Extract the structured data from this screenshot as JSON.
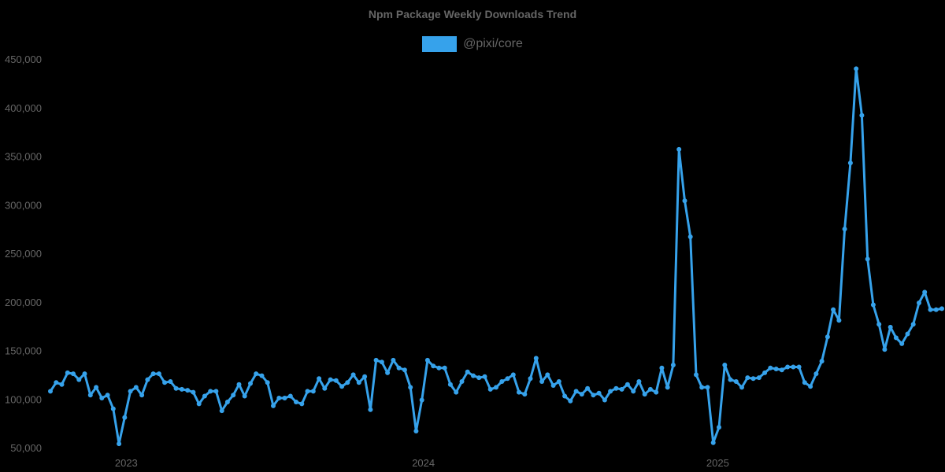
{
  "chart_data": {
    "type": "line",
    "title": "Npm Package Weekly Downloads Trend",
    "xlabel": "",
    "ylabel": "",
    "ylim": [
      50000,
      450000
    ],
    "y_ticks": [
      "450,000",
      "400,000",
      "350,000",
      "300,000",
      "250,000",
      "200,000",
      "150,000",
      "100,000",
      "50,000"
    ],
    "x_ticks": [
      {
        "label": "2023",
        "index": 13
      },
      {
        "label": "2024",
        "index": 65
      },
      {
        "label": "2025",
        "index": 116.5
      }
    ],
    "grid": false,
    "legend_position": "top",
    "series": [
      {
        "name": "@pixi/core",
        "color": "#36A2EB",
        "values": [
          108000,
          117000,
          115000,
          127000,
          126000,
          120000,
          126000,
          104000,
          112000,
          101000,
          104000,
          90000,
          54000,
          81000,
          108000,
          112000,
          104000,
          120000,
          126000,
          126000,
          117000,
          118000,
          111000,
          110000,
          109000,
          107000,
          95000,
          103000,
          108000,
          108000,
          88000,
          97000,
          104000,
          115000,
          103000,
          116000,
          126000,
          124000,
          117000,
          93000,
          101000,
          101000,
          103000,
          97000,
          95000,
          108000,
          108000,
          121000,
          111000,
          120000,
          119000,
          113000,
          117000,
          125000,
          117000,
          123000,
          89000,
          140000,
          138000,
          127000,
          140000,
          132000,
          130000,
          112000,
          67000,
          99000,
          140000,
          134000,
          132000,
          132000,
          115000,
          107000,
          118000,
          128000,
          124000,
          122000,
          123000,
          110000,
          112000,
          118000,
          121000,
          125000,
          107000,
          105000,
          121000,
          142000,
          118000,
          125000,
          114000,
          118000,
          103000,
          98000,
          108000,
          105000,
          111000,
          104000,
          106000,
          99000,
          108000,
          111000,
          110000,
          115000,
          108000,
          118000,
          105000,
          110000,
          107000,
          132000,
          112000,
          135000,
          357000,
          304000,
          267000,
          125000,
          112000,
          112000,
          55000,
          71000,
          135000,
          120000,
          118000,
          112000,
          122000,
          121000,
          122000,
          127000,
          132000,
          131000,
          130000,
          133000,
          133000,
          133000,
          117000,
          113000,
          126000,
          139000,
          164000,
          192000,
          181000,
          275000,
          343000,
          440000,
          392000,
          244000,
          197000,
          177000,
          151000,
          174000,
          163000,
          157000,
          167000,
          177000,
          199000,
          210000,
          192000,
          192000,
          193000
        ]
      }
    ]
  },
  "header": {
    "title": "Npm Package Weekly Downloads Trend"
  },
  "legend": {
    "items": [
      {
        "label": "@pixi/core",
        "color": "#36A2EB"
      }
    ]
  }
}
